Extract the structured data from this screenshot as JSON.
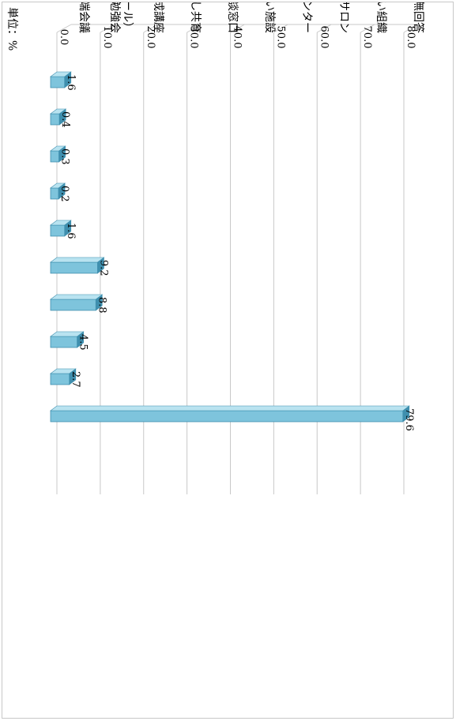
{
  "chart_data": {
    "type": "bar",
    "orientation": "rotated-90-clockwise",
    "unit_label": "単位：%",
    "categories": [
      [
        "ふくし井戸端会議"
      ],
      [
        "ふくし勉強会",
        "（知っトク！ふくしゼミナール）"
      ],
      [
        "にじいろサポーター養成講座"
      ],
      [
        "ふくし共育"
      ],
      [
        "ふくし相談窓口"
      ],
      [
        "地域ふれあい施設"
      ],
      [
        "福祉センター"
      ],
      [
        "地域サロン"
      ],
      [
        "住民同士の助け合い組織"
      ],
      [
        "無回答"
      ]
    ],
    "values": [
      1.6,
      0.4,
      0.3,
      0.2,
      1.6,
      9.2,
      8.8,
      4.5,
      2.7,
      79.6
    ],
    "value_labels": [
      "1.6",
      "0.4",
      "0.3",
      "0.2",
      "1.6",
      "9.2",
      "8.8",
      "4.5",
      "2.7",
      "79.6"
    ],
    "ticks": [
      "0.0",
      "10.0",
      "20.0",
      "30.0",
      "40.0",
      "50.0",
      "60.0",
      "70.0",
      "80.0"
    ],
    "ylim": [
      0,
      80
    ],
    "grid": true,
    "bar_color": "#7ec4dc",
    "bar_side_color": "#3f8fae",
    "bar_top_color": "#b9e3f0",
    "grid_color": "#c8c8c8"
  }
}
